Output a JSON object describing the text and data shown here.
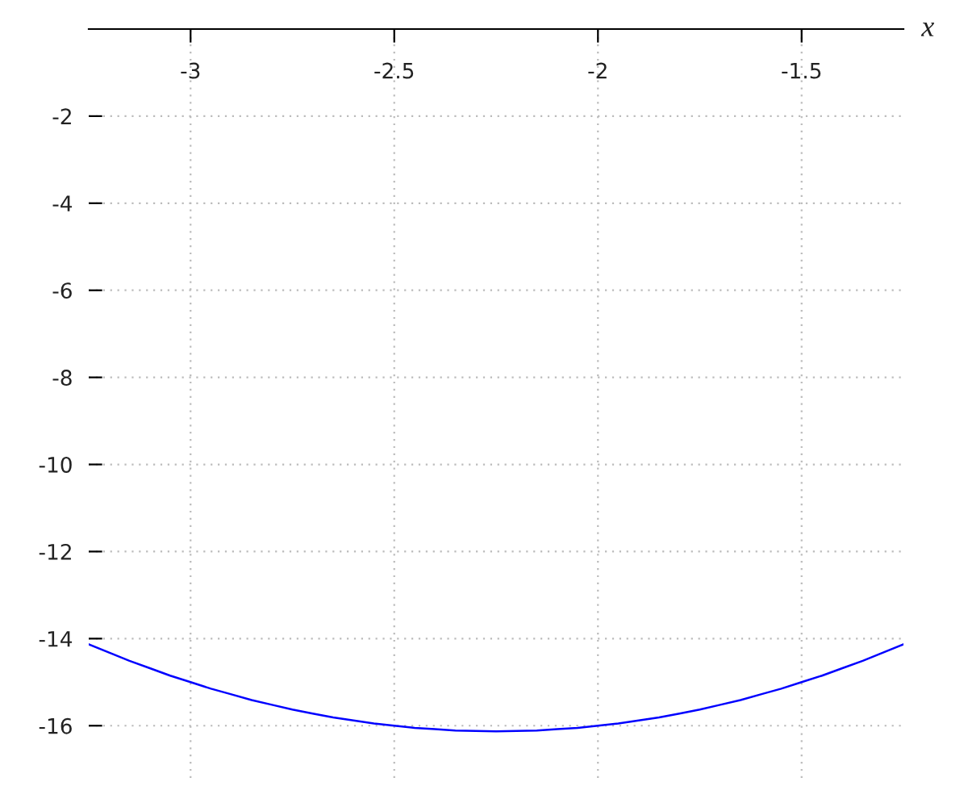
{
  "chart_data": {
    "type": "line",
    "xlabel": "x",
    "x": [
      -3.25,
      -3.2,
      -3.15,
      -3.1,
      -3.05,
      -3.0,
      -2.95,
      -2.9,
      -2.85,
      -2.8,
      -2.75,
      -2.7,
      -2.65,
      -2.6,
      -2.55,
      -2.5,
      -2.45,
      -2.4,
      -2.35,
      -2.3,
      -2.25,
      -2.2,
      -2.15,
      -2.1,
      -2.05,
      -2.0,
      -1.95,
      -1.9,
      -1.85,
      -1.8,
      -1.75,
      -1.7,
      -1.65,
      -1.6,
      -1.55,
      -1.5,
      -1.45,
      -1.4,
      -1.35,
      -1.3,
      -1.25
    ],
    "series": [
      {
        "color": "#0000ff",
        "values": [
          -14.13,
          -14.32,
          -14.51,
          -14.68,
          -14.85,
          -15.0,
          -15.15,
          -15.28,
          -15.41,
          -15.52,
          -15.63,
          -15.72,
          -15.81,
          -15.88,
          -15.95,
          -16.0,
          -16.05,
          -16.08,
          -16.11,
          -16.12,
          -16.13,
          -16.12,
          -16.11,
          -16.08,
          -16.05,
          -16.0,
          -15.95,
          -15.88,
          -15.81,
          -15.72,
          -15.63,
          -15.52,
          -15.41,
          -15.28,
          -15.15,
          -15.0,
          -14.85,
          -14.68,
          -14.51,
          -14.32,
          -14.13
        ]
      }
    ],
    "xlim": [
      -3.25,
      -1.25
    ],
    "ylim": [
      -17.2,
      0
    ],
    "xticks": [
      -3,
      -2.5,
      -2,
      -1.5
    ],
    "yticks": [
      -2,
      -4,
      -6,
      -8,
      -10,
      -12,
      -14,
      -16
    ],
    "grid": true
  }
}
